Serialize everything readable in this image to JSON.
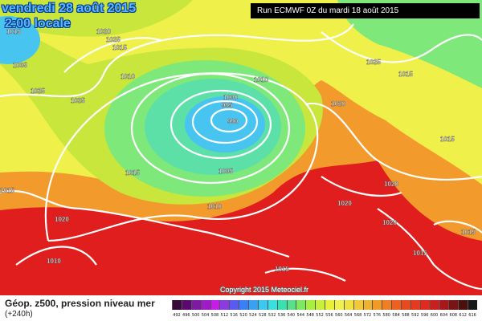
{
  "valid_date": "vendredi 28 août 2015",
  "valid_time": "2:00 locale",
  "run_info": "Run ECMWF 0Z du mardi 18 août 2015",
  "copyright": "Copyright 2015 Meteociel.fr",
  "field_title": "Géop. z500, pression niveau mer",
  "lead_time": "(+240h)",
  "colors": {
    "outer_low_ring": "#c8e63c",
    "low_ring_1": "#7ee87a",
    "low_ring_2": "#5ce0a8",
    "low_center": "#48c4f0",
    "high_yellow": "#f0f04a",
    "ridge_orange": "#f29a2c",
    "south_red": "#ec3a28",
    "deep_red": "#e01e1e",
    "isobar": "#ffffff",
    "title_text": "#57b7ff"
  },
  "isobars": [
    "1015",
    "1010",
    "1005",
    "1000",
    "995",
    "990",
    "1020",
    "1025",
    "1015",
    "1010",
    "1025",
    "1025",
    "1025",
    "1015",
    "1015",
    "1020",
    "1020",
    "1020",
    "1020",
    "1015",
    "1015",
    "1010",
    "1015",
    "1015",
    "1010",
    "1005",
    "1010",
    "1020",
    "1015"
  ],
  "scale": {
    "labels": [
      "492",
      "496",
      "500",
      "504",
      "508",
      "512",
      "516",
      "520",
      "524",
      "528",
      "532",
      "536",
      "540",
      "544",
      "548",
      "552",
      "556",
      "560",
      "564",
      "568",
      "572",
      "576",
      "580",
      "584",
      "588",
      "592",
      "596",
      "600",
      "604",
      "608",
      "612",
      "616"
    ],
    "colors": [
      "#3a0a3a",
      "#5a0a6e",
      "#7e1aa0",
      "#a01ac8",
      "#c81ae8",
      "#8a3ce0",
      "#5a5af0",
      "#3a7ef8",
      "#3aa0f0",
      "#3ac8f0",
      "#3ae0e0",
      "#3ae0b0",
      "#5ae08a",
      "#7ee860",
      "#a8f040",
      "#c8f03a",
      "#e8f03a",
      "#f0f050",
      "#f0e040",
      "#f0c83a",
      "#f0b030",
      "#f09a28",
      "#f07e22",
      "#ec6020",
      "#e84a20",
      "#e43a20",
      "#e02a20",
      "#c8201e",
      "#a8181a",
      "#7a1414",
      "#4a1010",
      "#181818"
    ]
  }
}
